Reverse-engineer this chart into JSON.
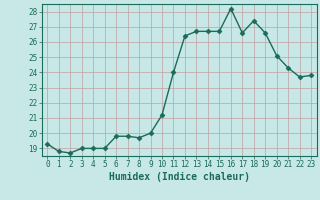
{
  "x": [
    0,
    1,
    2,
    3,
    4,
    5,
    6,
    7,
    8,
    9,
    10,
    11,
    12,
    13,
    14,
    15,
    16,
    17,
    18,
    19,
    20,
    21,
    22,
    23
  ],
  "y": [
    19.3,
    18.8,
    18.7,
    19.0,
    19.0,
    19.0,
    19.8,
    19.8,
    19.7,
    20.0,
    21.2,
    24.0,
    26.4,
    26.7,
    26.7,
    26.7,
    28.2,
    26.6,
    27.4,
    26.6,
    25.1,
    24.3,
    23.7,
    23.8
  ],
  "line_color": "#1a6b5a",
  "marker_color": "#1a6b5a",
  "bg_color": "#c8e8e8",
  "grid_color": "#c0a0a0",
  "xlabel": "Humidex (Indice chaleur)",
  "xlim": [
    -0.5,
    23.5
  ],
  "ylim": [
    18.5,
    28.5
  ],
  "yticks": [
    19,
    20,
    21,
    22,
    23,
    24,
    25,
    26,
    27,
    28
  ],
  "xticks": [
    0,
    1,
    2,
    3,
    4,
    5,
    6,
    7,
    8,
    9,
    10,
    11,
    12,
    13,
    14,
    15,
    16,
    17,
    18,
    19,
    20,
    21,
    22,
    23
  ],
  "font_color": "#1a6b5a",
  "marker_size": 2.5,
  "line_width": 1.0
}
